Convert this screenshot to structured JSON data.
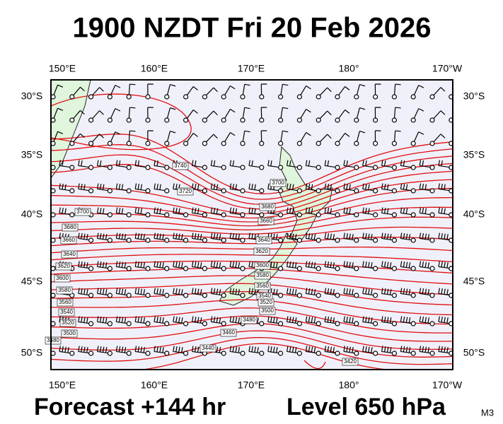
{
  "title": "1900 NZDT Fri 20 Feb 2026",
  "map": {
    "lon_labels": [
      "150°E",
      "160°E",
      "170°E",
      "180°",
      "170°W"
    ],
    "lat_labels": [
      "30°S",
      "35°S",
      "40°S",
      "45°S",
      "50°S"
    ],
    "contour_labels": [
      "3740",
      "3720",
      "3700",
      "3680",
      "3660",
      "3640",
      "3620",
      "3600",
      "3580",
      "3560",
      "3540",
      "3520",
      "3500",
      "3480",
      "3460",
      "3440",
      "3420",
      "3700",
      "3680",
      "3660",
      "3640",
      "3620",
      "3600",
      "3580",
      "3560",
      "3540",
      "3520",
      "3500",
      "3480"
    ]
  },
  "footer": {
    "forecast": "Forecast +144 hr",
    "level": "Level 650 hPa",
    "model": "M3"
  }
}
